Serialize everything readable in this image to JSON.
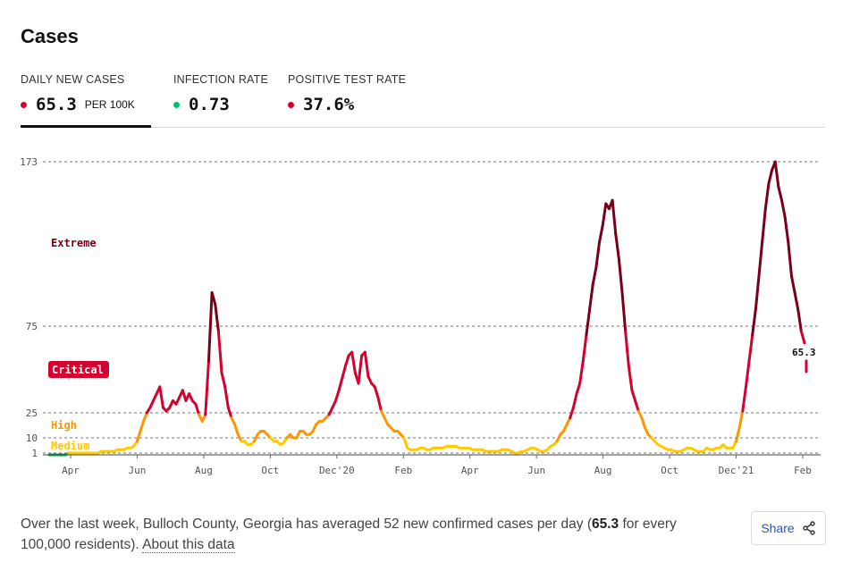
{
  "title": "Cases",
  "tabs": [
    {
      "label": "DAILY NEW CASES",
      "value": "65.3",
      "unit": "PER 100K",
      "dot_color": "#d6002f"
    },
    {
      "label": "INFECTION RATE",
      "value": "0.73",
      "unit": "",
      "dot_color": "#00c16b"
    },
    {
      "label": "POSITIVE TEST RATE",
      "value": "37.6%",
      "unit": "",
      "dot_color": "#d6002f"
    }
  ],
  "chart_data": {
    "type": "line",
    "y_ticks": [
      1,
      10,
      25,
      75,
      173
    ],
    "y_tick_labels": [
      "1",
      "10",
      "25",
      "75",
      "173"
    ],
    "x_tick_labels": [
      "Apr",
      "Jun",
      "Aug",
      "Oct",
      "Dec'20",
      "Feb",
      "Apr",
      "Jun",
      "Aug",
      "Oct",
      "Dec'21",
      "Feb"
    ],
    "levels": [
      {
        "name": "Extreme",
        "color": "#7a0019"
      },
      {
        "name": "Critical",
        "color": "#d6002f"
      },
      {
        "name": "High",
        "color": "#ff9600"
      },
      {
        "name": "Medium",
        "color": "#ffc900"
      }
    ],
    "last_value_label": "65.3",
    "series": [
      {
        "values": [
          0,
          0,
          0,
          0,
          0,
          0,
          1,
          1,
          1,
          1,
          1,
          1,
          1,
          1,
          1,
          1,
          2,
          2,
          2,
          2,
          2,
          3,
          3,
          3,
          4,
          4,
          5,
          8,
          14,
          20,
          25,
          28,
          32,
          36,
          40,
          28,
          26,
          28,
          32,
          30,
          34,
          38,
          32,
          36,
          32,
          30,
          24,
          20,
          24,
          55,
          95,
          88,
          72,
          48,
          40,
          28,
          22,
          18,
          12,
          8,
          8,
          6,
          6,
          8,
          12,
          14,
          14,
          12,
          10,
          8,
          8,
          6,
          7,
          10,
          12,
          10,
          10,
          14,
          14,
          12,
          12,
          14,
          18,
          20,
          20,
          22,
          24,
          28,
          32,
          38,
          45,
          52,
          58,
          60,
          48,
          42,
          58,
          60,
          46,
          42,
          40,
          34,
          26,
          22,
          18,
          16,
          14,
          14,
          12,
          10,
          4,
          3,
          3,
          3,
          4,
          4,
          3,
          3,
          4,
          4,
          4,
          4,
          5,
          5,
          5,
          5,
          4,
          4,
          4,
          4,
          3,
          3,
          3,
          3,
          2,
          2,
          2,
          2,
          2,
          3,
          3,
          3,
          2,
          1,
          1,
          2,
          2,
          3,
          4,
          4,
          3,
          2,
          2,
          3,
          5,
          6,
          8,
          12,
          14,
          18,
          22,
          28,
          36,
          42,
          55,
          70,
          85,
          100,
          110,
          125,
          135,
          148,
          145,
          150,
          130,
          115,
          95,
          72,
          52,
          38,
          32,
          26,
          22,
          16,
          12,
          10,
          8,
          6,
          5,
          4,
          3,
          3,
          2,
          2,
          2,
          3,
          4,
          4,
          3,
          2,
          2,
          2,
          4,
          3,
          3,
          4,
          4,
          6,
          4,
          4,
          4,
          8,
          16,
          26,
          40,
          55,
          70,
          85,
          105,
          125,
          145,
          160,
          168,
          173,
          158,
          150,
          140,
          125,
          105,
          95,
          85,
          72,
          65.3
        ]
      }
    ]
  },
  "description": {
    "prefix": "Over the last week, Bulloch County, Georgia has averaged 52 new confirmed cases per day (",
    "bold": "65.3",
    "suffix": " for every 100,000 residents). ",
    "link": "About this data"
  },
  "share_label": "Share"
}
